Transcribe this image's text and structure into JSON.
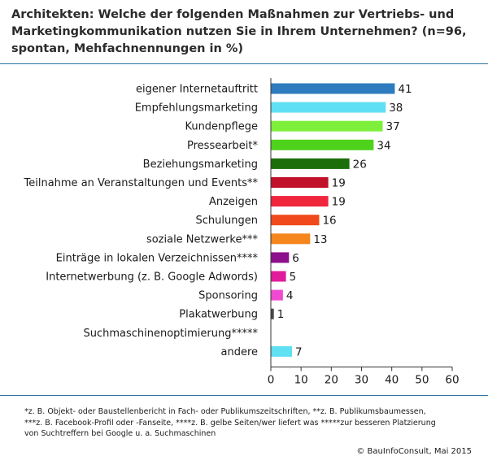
{
  "header": {
    "title": "Architekten: Welche der folgenden Maßnahmen zur Vertriebs- und Marketingkommunikation nutzen Sie in Ihrem Unternehmen? (n=96, spontan, Mehfachnennungen in %)"
  },
  "chart_data": {
    "type": "bar",
    "orientation": "horizontal",
    "title": "Architekten: Welche der folgenden Maßnahmen zur Vertriebs- und Marketingkommunikation nutzen Sie in Ihrem Unternehmen? (n=96, spontan, Mehfachnennungen in %)",
    "categories": [
      "eigener Internetauftritt",
      "Empfehlungsmarketing",
      "Kundenpflege",
      "Pressearbeit*",
      "Beziehungsmarketing",
      "Teilnahme an Veranstaltungen und Events**",
      "Anzeigen",
      "Schulungen",
      "soziale Netzwerke***",
      "Einträge in lokalen Verzeichnissen****",
      "Internetwerbung (z. B. Google Adwords)",
      "Sponsoring",
      "Plakatwerbung",
      "Suchmaschinenoptimierung*****",
      "andere"
    ],
    "values": [
      41,
      38,
      37,
      34,
      26,
      19,
      19,
      16,
      13,
      6,
      5,
      4,
      1,
      null,
      7
    ],
    "value_labels": [
      "41",
      "38",
      "37",
      "34",
      "26",
      "19",
      "19",
      "16",
      "13",
      "6",
      "5",
      "4",
      "1",
      "",
      "7"
    ],
    "colors": [
      "#2e7bbf",
      "#5fe0f3",
      "#7ef03c",
      "#4fd21c",
      "#1c6e0a",
      "#c0102a",
      "#f0263c",
      "#f04a1c",
      "#f5861e",
      "#8c0f8c",
      "#e01c9c",
      "#f04ad0",
      "#4a4a4a",
      "#ffffff",
      "#5fe0f3"
    ],
    "xlim": [
      0,
      60
    ],
    "xticks": [
      0,
      10,
      20,
      30,
      40,
      50,
      60
    ],
    "xtick_labels": [
      "0",
      "10",
      "20",
      "30",
      "40",
      "50",
      "60"
    ],
    "xlabel": "",
    "ylabel": "",
    "grid": false,
    "legend": "none"
  },
  "footnote": {
    "lines": [
      "*z. B. Objekt- oder Baustellenbericht in Fach- oder Publikumszeitschriften, **z. B. Publikumsbaumessen,",
      "***z. B.  Facebook-Profil oder -Fanseite, ****z. B. gelbe Seiten/wer liefert was *****zur besseren Platzierung",
      "von Suchtreffern bei Google u. a. Suchmaschinen"
    ]
  },
  "copyright": "© BauInfoConsult, Mai 2015"
}
